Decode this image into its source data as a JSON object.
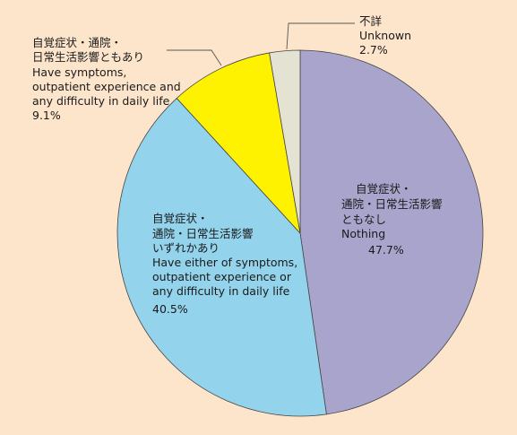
{
  "chart_data": {
    "type": "pie",
    "title": "",
    "start_angle_deg": 90,
    "direction": "clockwise",
    "slices": [
      {
        "key": "nothing",
        "value": 47.7,
        "value_label": "47.7%",
        "color": "#a9a4cc",
        "label_lines": [
          "自覚症状・",
          "通院・日常生活影響",
          "ともなし",
          "Nothing"
        ]
      },
      {
        "key": "either",
        "value": 40.5,
        "value_label": "40.5%",
        "color": "#94d3ec",
        "label_lines": [
          "自覚症状・",
          "通院・日常生活影響",
          "いずれかあり",
          "Have either of symptoms,",
          "outpatient experience or",
          "any difficulty in daily life"
        ]
      },
      {
        "key": "all",
        "value": 9.1,
        "value_label": "9.1%",
        "color": "#fff200",
        "label_lines": [
          "自覚症状・通院・",
          "日常生活影響ともあり",
          "Have symptoms,",
          "outpatient experience and",
          "any difficulty in daily life"
        ]
      },
      {
        "key": "unknown",
        "value": 2.7,
        "value_label": "2.7%",
        "color": "#e4e2d2",
        "label_lines": [
          "不詳",
          "Unknown"
        ]
      }
    ]
  }
}
